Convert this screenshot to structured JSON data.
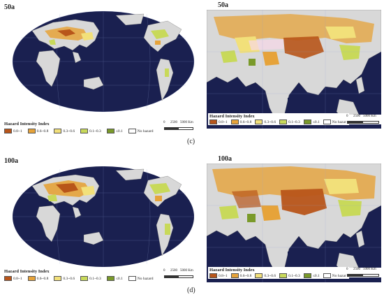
{
  "panels": [
    {
      "period": "50a",
      "panel_label": "(c)"
    },
    {
      "period": "100a",
      "panel_label": "(d)"
    }
  ],
  "legend": {
    "title": "Hazard Intensity Index",
    "items": [
      {
        "label": "0.8~1",
        "color": "#b8551a"
      },
      {
        "label": "0.6~0.8",
        "color": "#e6a33a"
      },
      {
        "label": "0.3~0.6",
        "color": "#f2e07a"
      },
      {
        "label": "0.1~0.3",
        "color": "#c8d95a"
      },
      {
        "label": "≤0.1",
        "color": "#7a9a2a"
      },
      {
        "label": "No hazard",
        "color": "#ffffff"
      }
    ]
  },
  "scale": {
    "zero": "0",
    "mid": "2500",
    "end": "5000 Km"
  },
  "colors": {
    "ocean": "#1a2050",
    "land": "#d8d8d8",
    "grid": "#8fa0d0"
  }
}
